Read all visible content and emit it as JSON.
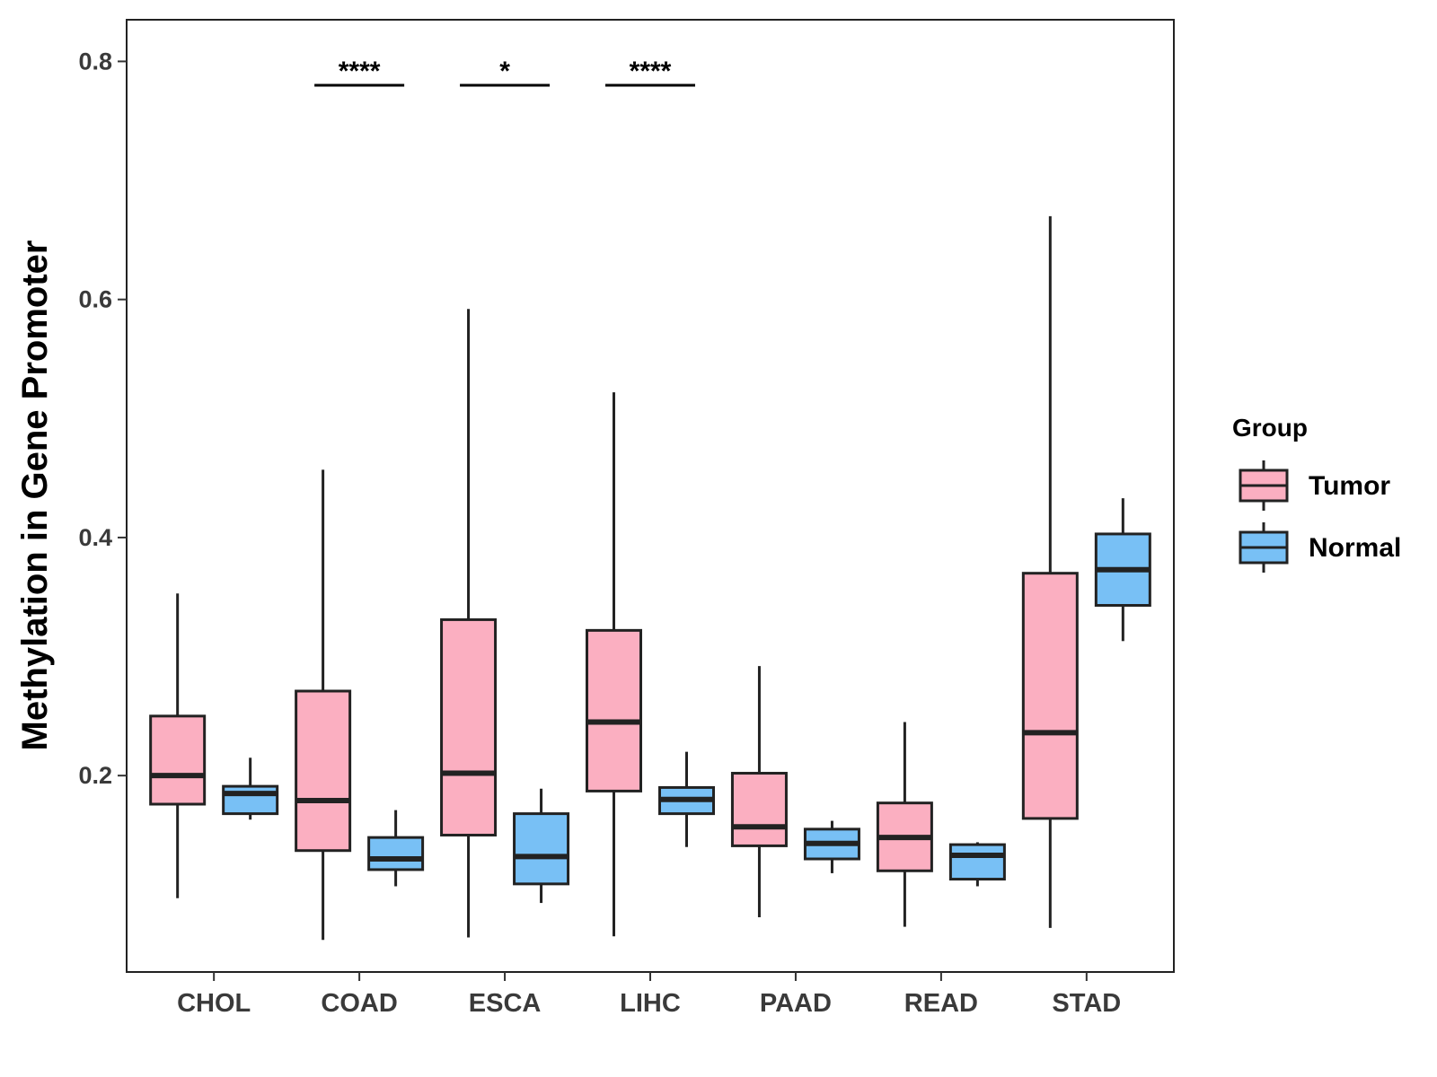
{
  "chart_data": {
    "type": "boxplot",
    "title": "",
    "xlabel": "",
    "ylabel": "Methylation in Gene Promoter",
    "ylim": [
      0.035,
      0.835
    ],
    "yticks": [
      0.2,
      0.4,
      0.6,
      0.8
    ],
    "ytick_labels": [
      "0.2",
      "0.4",
      "0.6",
      "0.8"
    ],
    "categories": [
      "CHOL",
      "COAD",
      "ESCA",
      "LIHC",
      "PAAD",
      "READ",
      "STAD"
    ],
    "legend": {
      "title": "Group",
      "position": "right",
      "entries": [
        "Tumor",
        "Normal"
      ]
    },
    "series": [
      {
        "name": "Tumor",
        "color": "#fbafc1",
        "boxes": [
          {
            "whisker_low": 0.097,
            "q1": 0.176,
            "median": 0.2,
            "q3": 0.25,
            "whisker_high": 0.353
          },
          {
            "whisker_low": 0.062,
            "q1": 0.137,
            "median": 0.179,
            "q3": 0.271,
            "whisker_high": 0.457
          },
          {
            "whisker_low": 0.064,
            "q1": 0.15,
            "median": 0.202,
            "q3": 0.331,
            "whisker_high": 0.592
          },
          {
            "whisker_low": 0.065,
            "q1": 0.187,
            "median": 0.245,
            "q3": 0.322,
            "whisker_high": 0.522
          },
          {
            "whisker_low": 0.081,
            "q1": 0.141,
            "median": 0.157,
            "q3": 0.202,
            "whisker_high": 0.292
          },
          {
            "whisker_low": 0.073,
            "q1": 0.12,
            "median": 0.148,
            "q3": 0.177,
            "whisker_high": 0.245
          },
          {
            "whisker_low": 0.072,
            "q1": 0.164,
            "median": 0.236,
            "q3": 0.37,
            "whisker_high": 0.67
          }
        ]
      },
      {
        "name": "Normal",
        "color": "#78c0f5",
        "boxes": [
          {
            "whisker_low": 0.163,
            "q1": 0.168,
            "median": 0.185,
            "q3": 0.191,
            "whisker_high": 0.215
          },
          {
            "whisker_low": 0.107,
            "q1": 0.121,
            "median": 0.13,
            "q3": 0.148,
            "whisker_high": 0.171
          },
          {
            "whisker_low": 0.093,
            "q1": 0.109,
            "median": 0.132,
            "q3": 0.168,
            "whisker_high": 0.189
          },
          {
            "whisker_low": 0.14,
            "q1": 0.168,
            "median": 0.18,
            "q3": 0.19,
            "whisker_high": 0.22
          },
          {
            "whisker_low": 0.118,
            "q1": 0.13,
            "median": 0.143,
            "q3": 0.155,
            "whisker_high": 0.162
          },
          {
            "whisker_low": 0.107,
            "q1": 0.113,
            "median": 0.133,
            "q3": 0.142,
            "whisker_high": 0.144
          },
          {
            "whisker_low": 0.313,
            "q1": 0.343,
            "median": 0.373,
            "q3": 0.403,
            "whisker_high": 0.433
          }
        ]
      }
    ],
    "significance": [
      {
        "category": "COAD",
        "label": "****",
        "y": 0.78
      },
      {
        "category": "ESCA",
        "label": "*",
        "y": 0.78
      },
      {
        "category": "LIHC",
        "label": "****",
        "y": 0.78
      }
    ]
  }
}
